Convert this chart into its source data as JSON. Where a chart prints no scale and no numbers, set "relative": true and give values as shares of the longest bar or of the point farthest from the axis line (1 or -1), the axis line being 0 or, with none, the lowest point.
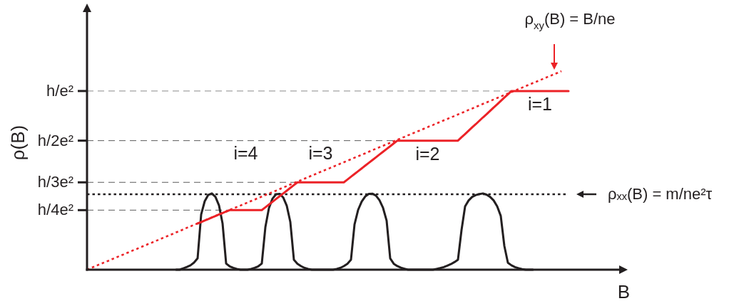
{
  "chart_data": {
    "type": "line",
    "xlabel": "B",
    "ylabel": "ρ(B)",
    "relative": true,
    "tick_labels": false,
    "categories": [
      null,
      null,
      null,
      null,
      null,
      null,
      null,
      null,
      null,
      null,
      null,
      null,
      null,
      null,
      null,
      null,
      null,
      null,
      null,
      null,
      null,
      null,
      null,
      null,
      null,
      null,
      null,
      null,
      null,
      null,
      null,
      null,
      null,
      null,
      null,
      null,
      null,
      null,
      null,
      null,
      null,
      null,
      null,
      null,
      null,
      null,
      null,
      null,
      null,
      null,
      null,
      null,
      null,
      null,
      null,
      null,
      null,
      null,
      null,
      null,
      null,
      null,
      null,
      null,
      null,
      null,
      null,
      null,
      null,
      null,
      null,
      null,
      null,
      null,
      null,
      null,
      null,
      null,
      null,
      null,
      null,
      null,
      null,
      null,
      null,
      null,
      null,
      null,
      null,
      null,
      null,
      null,
      null,
      null,
      null,
      null,
      null,
      null,
      null,
      null,
      null,
      null,
      null,
      null,
      null,
      null,
      null,
      null,
      null,
      null,
      null,
      null,
      null,
      null,
      null,
      null,
      null,
      null,
      null,
      null,
      null,
      null,
      null,
      null,
      null,
      null,
      null,
      null,
      null,
      null,
      null,
      null,
      null,
      null,
      null,
      null
    ],
    "series": [
      {
        "color": "#ec2227",
        "line_style": "dotted",
        "values": [
          0,
          0.008,
          0.015,
          0.023,
          0.03,
          0.038,
          0.045,
          0.053,
          0.06,
          0.068,
          0.075,
          0.083,
          0.09,
          0.098,
          0.105,
          0.113,
          0.12,
          0.128,
          0.135,
          0.143,
          0.15,
          0.158,
          0.165,
          0.173,
          0.18,
          0.188,
          0.195,
          0.203,
          0.211,
          0.218,
          0.226,
          0.233,
          0.241,
          0.248,
          0.256,
          0.263,
          0.271,
          0.278,
          0.286,
          0.293,
          0.301,
          0.308,
          0.316,
          0.323,
          0.331,
          0.338,
          0.346,
          0.353,
          0.361,
          0.368,
          0.376,
          0.383,
          0.391,
          0.398,
          0.406,
          0.414,
          0.421,
          0.429,
          0.436,
          0.444,
          0.451,
          0.459,
          0.466,
          0.474,
          0.481,
          0.489,
          0.496,
          0.504,
          0.511,
          0.519,
          0.526,
          0.534,
          0.541,
          0.549,
          0.556,
          0.564,
          0.571,
          0.579,
          0.586,
          0.594,
          0.602,
          0.609,
          0.617,
          0.624,
          0.632,
          0.639,
          0.647,
          0.654,
          0.662,
          0.669,
          0.677,
          0.684,
          0.692,
          0.699,
          0.707,
          0.714,
          0.722,
          0.729,
          0.737,
          0.744,
          0.752,
          0.759,
          0.767,
          0.774,
          0.782,
          0.789,
          0.797,
          0.805,
          0.812,
          0.82,
          0.827,
          0.835,
          0.842,
          0.85,
          0.857,
          0.865,
          0.872,
          0.88,
          0.887,
          0.895,
          0.902,
          0.91,
          0.917,
          0.925,
          0.932,
          0.94,
          0.947,
          0.955,
          0.962,
          0.97,
          0.977,
          0.985,
          0.992,
          1,
          null,
          null
        ]
      },
      {
        "color": "#231f20",
        "line_style": "solid",
        "values": [
          null,
          null,
          null,
          null,
          null,
          null,
          null,
          null,
          null,
          null,
          null,
          null,
          null,
          null,
          null,
          null,
          null,
          null,
          null,
          null,
          null,
          null,
          null,
          null,
          null,
          0,
          0,
          0.007,
          0.014,
          0.022,
          0.036,
          0.057,
          0.278,
          0.345,
          0.377,
          0.384,
          0.367,
          0.324,
          0.233,
          0.031,
          0.017,
          0.009,
          0.004,
          0,
          0,
          0,
          0.004,
          0.009,
          0.017,
          0.031,
          0.214,
          0.31,
          0.358,
          0.38,
          0.382,
          0.364,
          0.322,
          0.24,
          0.05,
          0.03,
          0.018,
          0.009,
          0.004,
          0,
          0,
          0,
          0,
          0,
          0,
          0,
          0.004,
          0.009,
          0.018,
          0.03,
          0.05,
          0.228,
          0.301,
          0.343,
          0.369,
          0.382,
          0.383,
          0.373,
          0.35,
          0.311,
          0.247,
          0.057,
          0.03,
          0.018,
          0.01,
          0.005,
          0,
          0,
          0,
          0,
          0,
          0,
          0,
          0,
          0.004,
          0.008,
          0.013,
          0.02,
          0.028,
          0.038,
          0.05,
          0.2,
          0.319,
          0.349,
          0.367,
          0.376,
          0.381,
          0.384,
          0.378,
          0.367,
          0.349,
          0.319,
          0.271,
          0.12,
          0.035,
          0.022,
          0.013,
          0.007,
          0.003,
          0,
          0,
          0,
          null,
          null,
          null,
          null,
          null,
          null,
          null,
          null,
          null,
          null
        ]
      },
      {
        "color": "#ec2227",
        "line_style": "solid",
        "values": [
          null,
          null,
          null,
          null,
          null,
          null,
          null,
          null,
          null,
          null,
          null,
          null,
          null,
          null,
          null,
          null,
          null,
          null,
          null,
          null,
          null,
          null,
          null,
          null,
          null,
          null,
          null,
          null,
          null,
          null,
          null,
          0.233,
          0.24,
          0.248,
          0.255,
          0.263,
          0.27,
          0.278,
          0.285,
          0.293,
          0.3,
          0.3,
          0.3,
          0.3,
          0.3,
          0.3,
          0.3,
          0.3,
          0.3,
          0.3,
          0.314,
          0.328,
          0.342,
          0.356,
          0.37,
          0.384,
          0.398,
          0.412,
          0.426,
          0.44,
          0.44,
          0.44,
          0.44,
          0.44,
          0.44,
          0.44,
          0.44,
          0.44,
          0.44,
          0.44,
          0.44,
          0.44,
          0.44,
          0.454,
          0.468,
          0.482,
          0.496,
          0.51,
          0.524,
          0.538,
          0.552,
          0.566,
          0.58,
          0.594,
          0.608,
          0.622,
          0.636,
          0.65,
          0.65,
          0.65,
          0.65,
          0.65,
          0.65,
          0.65,
          0.65,
          0.65,
          0.65,
          0.65,
          0.65,
          0.65,
          0.65,
          0.65,
          0.65,
          0.65,
          0.65,
          0.667,
          0.683,
          0.7,
          0.717,
          0.733,
          0.75,
          0.767,
          0.783,
          0.8,
          0.817,
          0.833,
          0.85,
          0.867,
          0.883,
          0.9,
          0.9,
          0.9,
          0.9,
          0.9,
          0.9,
          0.9,
          0.9,
          0.9,
          0.9,
          0.9,
          0.9,
          0.9,
          0.9,
          0.9,
          0.9,
          0.9
        ]
      }
    ],
    "ref_lines": [
      {
        "axis": "y",
        "value": 0.9,
        "label": "h/e²",
        "line_style": "dashed",
        "color": "#8a8a8a"
      },
      {
        "axis": "y",
        "value": 0.65,
        "label": "h/2e²",
        "line_style": "dashed",
        "color": "#5a5a5a"
      },
      {
        "axis": "y",
        "value": 0.44,
        "label": "h/3e²",
        "line_style": "dashed",
        "color": "#5a5a5a"
      },
      {
        "axis": "y",
        "value": 0.3,
        "label": "h/4e²",
        "line_style": "dashed",
        "color": "#5a5a5a"
      },
      {
        "axis": "y",
        "value": 0.38,
        "label": "ρₓₓ(B) = m/ne²τ",
        "line_style": "dotted",
        "color": "#231f20"
      }
    ],
    "annotations": [
      "ρ$_{xy}$(B) = B/ne",
      {
        "text": "i=4",
        "y": 0.3
      },
      {
        "text": "i=3",
        "y": 0.44
      },
      {
        "text": "i=2",
        "y": 0.65
      },
      {
        "text": "i=1",
        "y": 0.9
      }
    ]
  }
}
